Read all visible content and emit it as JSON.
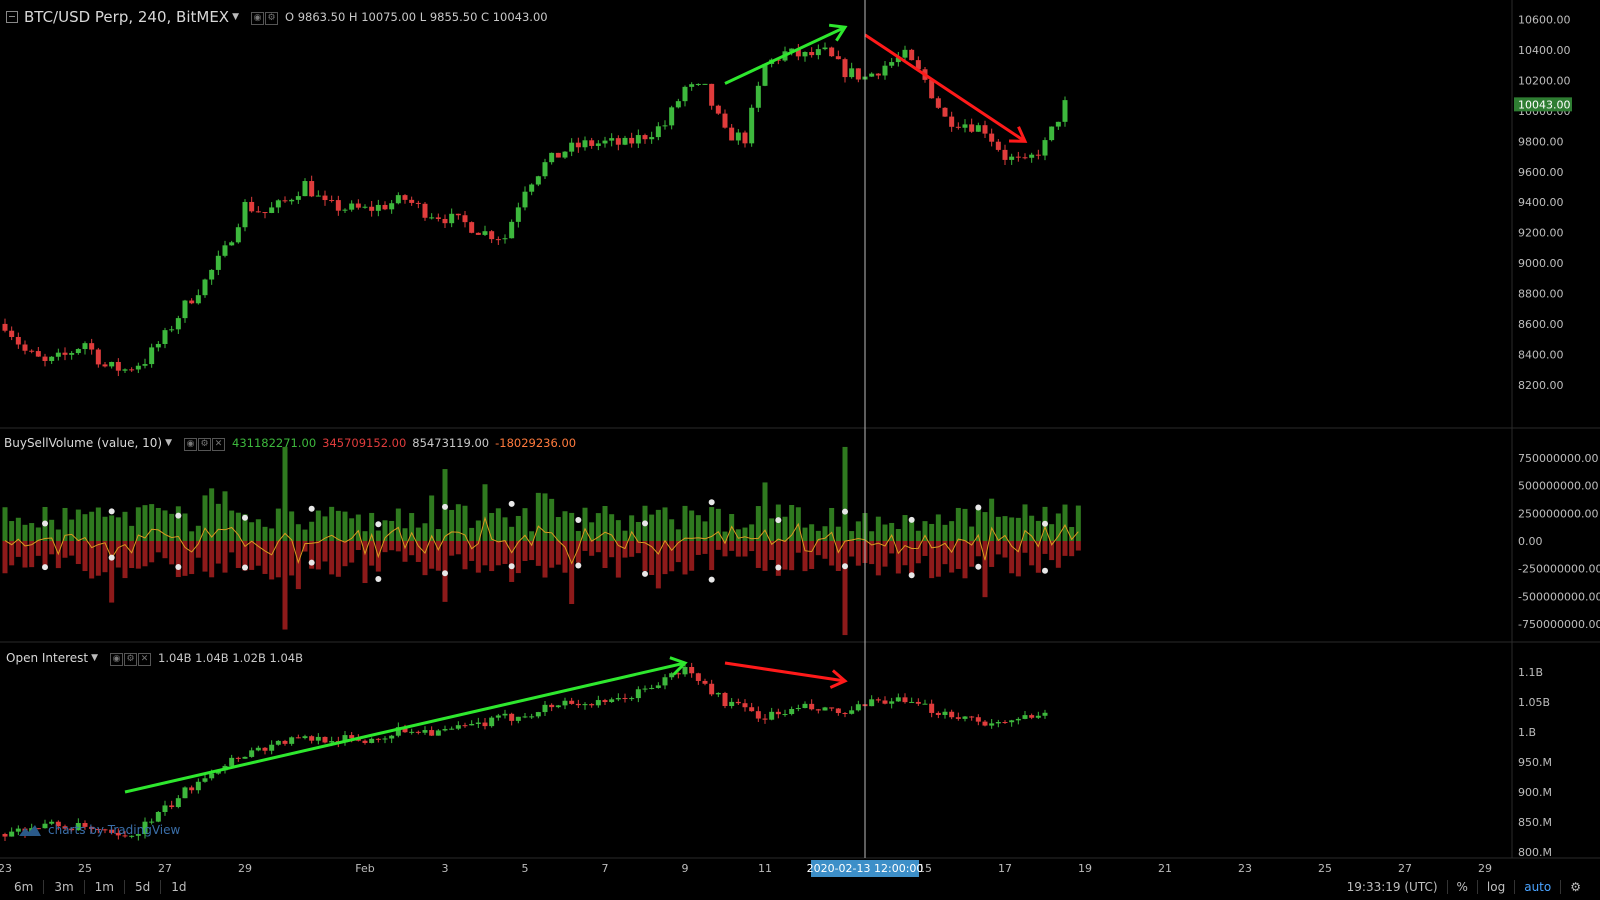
{
  "header": {
    "symbol": "BTC/USD Perp, 240, BitMEX",
    "ohlc": "O 9863.50 H 10075.00 L 9855.50 C 10043.00"
  },
  "indicator1": {
    "name": "BuySellVolume (value, 10)",
    "values": [
      "431182271.00",
      "345709152.00",
      "85473119.00",
      "-18029236.00"
    ]
  },
  "indicator2": {
    "name": "Open Interest",
    "values": "1.04B 1.04B 1.02B 1.04B"
  },
  "colors": {
    "up": "#3db83d",
    "down": "#e03c3c",
    "buyvol": "#2f7a1f",
    "sellvol": "#8e1a1a",
    "line": "#d89a20",
    "arrow_up": "#2ee82e",
    "arrow_down": "#ff1a1a"
  },
  "crosshair_label": "2020-02-13 12:00:00",
  "watermark": "charts by TradingView",
  "timeframes": [
    "6m",
    "3m",
    "1m",
    "5d",
    "1d"
  ],
  "footer": {
    "clock": "19:33:19 (UTC)",
    "percent": "%",
    "log": "log",
    "auto": "auto",
    "settings_icon": "gear-icon"
  },
  "chart_data": [
    {
      "type": "candlestick",
      "title": "BTC/USD Perp, 240, BitMEX",
      "y_ticks": [
        "10600.00",
        "10400.00",
        "10200.00",
        "10000.00",
        "9800.00",
        "9600.00",
        "9400.00",
        "9200.00",
        "9000.00",
        "8800.00",
        "8600.00",
        "8400.00",
        "8200.00"
      ],
      "ylim": [
        8100,
        10650
      ],
      "last_price": "10043.00",
      "x_ticks": [
        "23",
        "25",
        "27",
        "29",
        "Feb",
        "3",
        "5",
        "7",
        "9",
        "11",
        "13",
        "15",
        "17",
        "19",
        "21",
        "23",
        "25",
        "27",
        "29"
      ],
      "close_path": [
        [
          "2020-01-23",
          8600
        ],
        [
          "2020-01-23T12",
          8420
        ],
        [
          "2020-01-24",
          8340
        ],
        [
          "2020-01-24T12",
          8390
        ],
        [
          "2020-01-25",
          8480
        ],
        [
          "2020-01-25T12",
          8320
        ],
        [
          "2020-01-26",
          8300
        ],
        [
          "2020-01-26T12",
          8360
        ],
        [
          "2020-01-27",
          8520
        ],
        [
          "2020-01-27T12",
          8720
        ],
        [
          "2020-01-28",
          8880
        ],
        [
          "2020-01-28T12",
          9080
        ],
        [
          "2020-01-29",
          9380
        ],
        [
          "2020-01-29T12",
          9330
        ],
        [
          "2020-01-30",
          9400
        ],
        [
          "2020-01-30T12",
          9520
        ],
        [
          "2020-01-31",
          9380
        ],
        [
          "2020-01-31T12",
          9360
        ],
        [
          "2020-02-01",
          9350
        ],
        [
          "2020-02-01T12",
          9380
        ],
        [
          "2020-02-02",
          9420
        ],
        [
          "2020-02-02T12",
          9340
        ],
        [
          "2020-02-03",
          9300
        ],
        [
          "2020-02-03T12",
          9260
        ],
        [
          "2020-02-04",
          9200
        ],
        [
          "2020-02-04T12",
          9170
        ],
        [
          "2020-02-05",
          9500
        ],
        [
          "2020-02-05T12",
          9650
        ],
        [
          "2020-02-06",
          9740
        ],
        [
          "2020-02-06T12",
          9780
        ],
        [
          "2020-02-07",
          9790
        ],
        [
          "2020-02-07T12",
          9780
        ],
        [
          "2020-02-08",
          9840
        ],
        [
          "2020-02-08T12",
          9910
        ],
        [
          "2020-02-09",
          10150
        ],
        [
          "2020-02-09T12",
          10140
        ],
        [
          "2020-02-10",
          9850
        ],
        [
          "2020-02-10T12",
          9820
        ],
        [
          "2020-02-11",
          10300
        ],
        [
          "2020-02-11T12",
          10380
        ],
        [
          "2020-02-12",
          10360
        ],
        [
          "2020-02-12T12",
          10380
        ],
        [
          "2020-02-13",
          10260
        ],
        [
          "2020-02-13T12",
          10220
        ],
        [
          "2020-02-14",
          10300
        ],
        [
          "2020-02-14T12",
          10360
        ],
        [
          "2020-02-15",
          10200
        ],
        [
          "2020-02-15T12",
          9950
        ],
        [
          "2020-02-16",
          9920
        ],
        [
          "2020-02-16T12",
          9880
        ],
        [
          "2020-02-17",
          9700
        ],
        [
          "2020-02-17T12",
          9650
        ],
        [
          "2020-02-18",
          9780
        ],
        [
          "2020-02-18T12",
          10043
        ]
      ],
      "annotations": [
        {
          "type": "arrow",
          "color": "green",
          "from": [
            "2020-02-10",
            10180
          ],
          "to": [
            "2020-02-13",
            10550
          ]
        },
        {
          "type": "arrow",
          "color": "red",
          "from": [
            "2020-02-13T12",
            10500
          ],
          "to": [
            "2020-02-17T12",
            9800
          ]
        }
      ]
    },
    {
      "type": "bar",
      "title": "BuySellVolume (value, 10)",
      "y_ticks": [
        "750000000.00",
        "500000000.00",
        "250000000.00",
        "0.00",
        "-250000000.00",
        "-500000000.00",
        "-750000000.00"
      ],
      "ylim": [
        -850000000,
        850000000
      ],
      "series": [
        {
          "values_desc": "buy volume bars (positive, green) and sell volume bars (negative, red) every 4h from 2020-01-23 to 2020-02-18; spikes near Jan 30 (~850M), Feb 3 (~650M), Feb 13 (~850M)"
        },
        {
          "values_desc": "orange moving-average line oscillating around 0"
        }
      ]
    },
    {
      "type": "candlestick",
      "title": "Open Interest",
      "y_ticks": [
        "1.1B",
        "1.05B",
        "1.B",
        "950.M",
        "900.M",
        "850.M",
        "800.M"
      ],
      "ylim": [
        795000000,
        1130000000
      ],
      "close_path": [
        [
          "2020-01-23",
          830000000
        ],
        [
          "2020-01-24",
          845000000
        ],
        [
          "2020-01-25",
          840000000
        ],
        [
          "2020-01-26",
          820000000
        ],
        [
          "2020-01-27",
          870000000
        ],
        [
          "2020-01-28",
          930000000
        ],
        [
          "2020-01-29",
          965000000
        ],
        [
          "2020-01-30",
          985000000
        ],
        [
          "2020-01-31",
          990000000
        ],
        [
          "2020-02-01",
          985000000
        ],
        [
          "2020-02-02",
          1005000000
        ],
        [
          "2020-02-03",
          1000000000
        ],
        [
          "2020-02-04",
          1015000000
        ],
        [
          "2020-02-05",
          1030000000
        ],
        [
          "2020-02-06",
          1050000000
        ],
        [
          "2020-02-07",
          1045000000
        ],
        [
          "2020-02-08",
          1070000000
        ],
        [
          "2020-02-09",
          1105000000
        ],
        [
          "2020-02-10",
          1050000000
        ],
        [
          "2020-02-11",
          1025000000
        ],
        [
          "2020-02-12",
          1040000000
        ],
        [
          "2020-02-13",
          1030000000
        ],
        [
          "2020-02-14",
          1055000000
        ],
        [
          "2020-02-15",
          1040000000
        ],
        [
          "2020-02-16",
          1025000000
        ],
        [
          "2020-02-17",
          1010000000
        ],
        [
          "2020-02-18",
          1040000000
        ]
      ],
      "annotations": [
        {
          "type": "arrow",
          "color": "green",
          "from": [
            "2020-01-26",
            900000000
          ],
          "to": [
            "2020-02-09",
            1115000000
          ]
        },
        {
          "type": "arrow",
          "color": "red",
          "from": [
            "2020-02-10",
            1115000000
          ],
          "to": [
            "2020-02-13",
            1085000000
          ]
        }
      ]
    }
  ]
}
